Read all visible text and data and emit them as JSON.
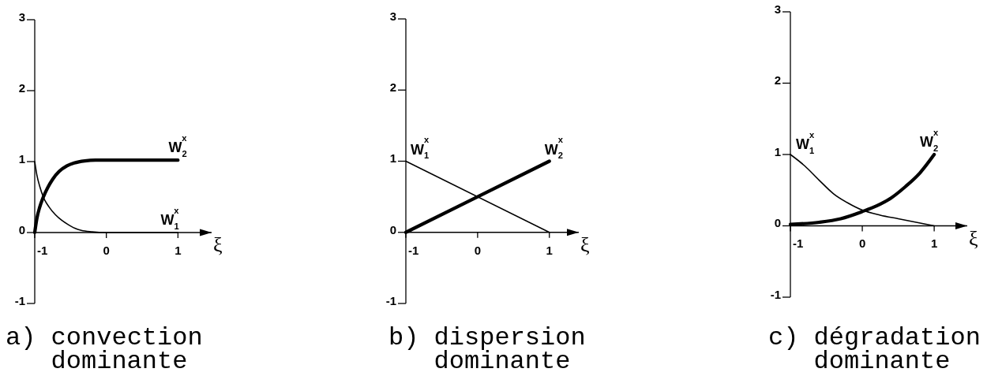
{
  "chart_data": [
    {
      "type": "line",
      "title": "a) convection dominante",
      "xlabel": "ξ",
      "xlim": [
        -1,
        1.47
      ],
      "xticks": [
        -1,
        0,
        1
      ],
      "ylim": [
        -1,
        3
      ],
      "yticks": [
        -1,
        0,
        1,
        2,
        3
      ],
      "line_style": "solid",
      "series": [
        {
          "name": "W$_{1}$$^{x}$",
          "color": "#000000",
          "x": [
            -1,
            -0.97,
            -0.93,
            -0.88,
            -0.8,
            -0.71,
            -0.62,
            -0.53,
            -0.44,
            -0.35,
            -0.2,
            0,
            0.5,
            1
          ],
          "values": [
            1,
            0.81,
            0.65,
            0.5,
            0.36,
            0.25,
            0.17,
            0.11,
            0.06,
            0.03,
            0.01,
            0,
            0,
            0
          ]
        },
        {
          "name": "W$_{2}$$^{x}$",
          "color": "#000000",
          "x": [
            -1,
            -0.97,
            -0.93,
            -0.88,
            -0.82,
            -0.75,
            -0.66,
            -0.55,
            -0.45,
            -0.3,
            -0.15,
            0,
            0.5,
            1
          ],
          "values": [
            0,
            0.2,
            0.36,
            0.5,
            0.63,
            0.75,
            0.86,
            0.94,
            0.98,
            1.01,
            1.02,
            1.02,
            1.02,
            1.02
          ]
        }
      ]
    },
    {
      "type": "line",
      "title": "b) dispersion dominante",
      "xlabel": "ξ",
      "xlim": [
        -1,
        1.41
      ],
      "xticks": [
        -1,
        0,
        1
      ],
      "ylim": [
        -1,
        3
      ],
      "yticks": [
        -1,
        0,
        1,
        2,
        3
      ],
      "line_style": "solid",
      "series": [
        {
          "name": "W$_{1}$$^{x}$",
          "color": "#000000",
          "x": [
            -1,
            1
          ],
          "values": [
            1,
            0
          ]
        },
        {
          "name": "W$_{2}$$^{x}$",
          "color": "#000000",
          "x": [
            -1,
            1
          ],
          "values": [
            0,
            1
          ]
        }
      ]
    },
    {
      "type": "line",
      "title": "c) dégradation dominante",
      "xlabel": "ξ",
      "xlim": [
        -1,
        1.46
      ],
      "xticks": [
        -1,
        0,
        1
      ],
      "ylim": [
        -1,
        3
      ],
      "yticks": [
        -1,
        0,
        1,
        2,
        3
      ],
      "line_style": "solid",
      "series": [
        {
          "name": "W$_{1}$$^{x}$",
          "color": "#000000",
          "x": [
            -1,
            -0.8,
            -0.6,
            -0.4,
            -0.2,
            0,
            0.25,
            0.5,
            0.75,
            1
          ],
          "values": [
            1,
            0.84,
            0.64,
            0.45,
            0.32,
            0.22,
            0.15,
            0.1,
            0.05,
            0
          ]
        },
        {
          "name": "W$_{2}$$^{x}$",
          "color": "#000000",
          "x": [
            -1,
            -0.6,
            -0.3,
            0,
            0.2,
            0.4,
            0.6,
            0.8,
            1
          ],
          "values": [
            0.02,
            0.05,
            0.1,
            0.2,
            0.28,
            0.39,
            0.55,
            0.74,
            1
          ]
        }
      ]
    }
  ]
}
